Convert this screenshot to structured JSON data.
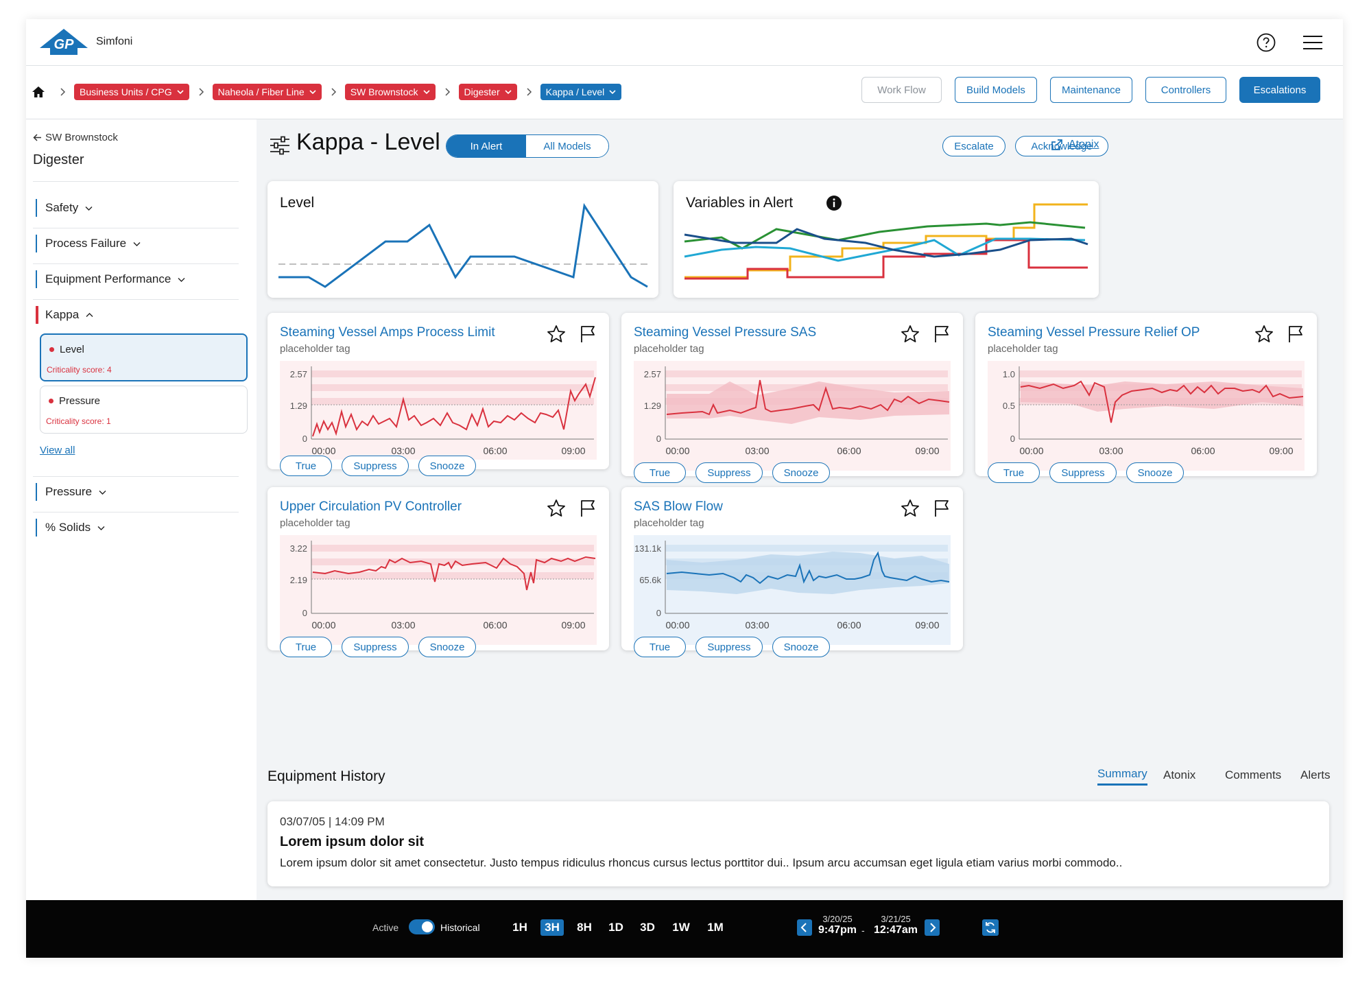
{
  "app": {
    "name": "Simfoni",
    "logo_text": "GP"
  },
  "breadcrumbs": [
    {
      "label": "Business Units / CPG"
    },
    {
      "label": "Naheola / Fiber Line"
    },
    {
      "label": "SW Brownstock"
    },
    {
      "label": "Digester"
    },
    {
      "label": "Kappa / Level"
    }
  ],
  "nav_buttons": [
    {
      "label": "Work Flow"
    },
    {
      "label": "Build Models"
    },
    {
      "label": "Maintenance"
    },
    {
      "label": "Controllers"
    },
    {
      "label": "Escalations"
    }
  ],
  "sidebar": {
    "back_label": "SW Brownstock",
    "title": "Digester",
    "groups": [
      {
        "label": "Safety"
      },
      {
        "label": "Process Failure"
      },
      {
        "label": "Equipment Performance"
      },
      {
        "label": "Kappa"
      },
      {
        "label": "Pressure"
      },
      {
        "label": "% Solids"
      }
    ],
    "alerts": [
      {
        "name": "Level",
        "score": "Criticality score: 4"
      },
      {
        "name": "Pressure",
        "score": "Criticality score: 1"
      }
    ],
    "view_all": "View all"
  },
  "header": {
    "title": "Kappa - Level",
    "toggle": [
      "In Alert",
      "All Models"
    ],
    "actions": [
      "Escalate",
      "Acknowledge"
    ],
    "atonix": "Atonix"
  },
  "summary_cards": {
    "level_title": "Level",
    "variables_title": "Variables in Alert"
  },
  "model_cards": [
    {
      "title": "Steaming Vessel Amps Process Limit",
      "tag": "placeholder tag",
      "y_ticks": [
        "2.57",
        "1.29",
        "0"
      ]
    },
    {
      "title": "Steaming Vessel Pressure SAS",
      "tag": "placeholder tag",
      "y_ticks": [
        "2.57",
        "1.29",
        "0"
      ]
    },
    {
      "title": "Steaming Vessel Pressure Relief OP",
      "tag": "placeholder tag",
      "y_ticks": [
        "1.0",
        "0.5",
        "0"
      ]
    },
    {
      "title": "Upper Circulation PV Controller",
      "tag": "placeholder tag",
      "y_ticks": [
        "3.22",
        "2.19",
        "0"
      ]
    },
    {
      "title": "SAS Blow Flow",
      "tag": "placeholder tag",
      "y_ticks": [
        "131.1k",
        "65.6k",
        "0"
      ]
    }
  ],
  "x_ticks": [
    "00:00",
    "03:00",
    "06:00",
    "09:00"
  ],
  "card_actions": [
    "True",
    "Suppress",
    "Snooze"
  ],
  "history": {
    "title": "Equipment History",
    "tabs": [
      "Summary",
      "Atonix",
      "Comments",
      "Alerts"
    ],
    "entry": {
      "timestamp": "03/07/05 | 14:09 PM",
      "headline": "Lorem ipsum dolor sit",
      "body": "Lorem ipsum dolor sit amet consectetur. Justo tempus ridiculus rhoncus cursus lectus porttitor dui.. Ipsum arcu accumsan eget ligula etiam varius morbi commodo.."
    }
  },
  "footer": {
    "mode_left": "Active",
    "mode_right": "Historical",
    "ranges": [
      "1H",
      "3H",
      "8H",
      "1D",
      "3D",
      "1W",
      "1M"
    ],
    "selected_range": "3H",
    "start_date": "3/20/25",
    "start_time": "9:47pm",
    "end_date": "3/21/25",
    "end_time": "12:47am",
    "separator": "-"
  },
  "colors": {
    "accent": "#1a73b8",
    "alert": "#d9313e",
    "green": "#2a9134",
    "orange": "#f2b31b",
    "cyan": "#20a8d4"
  }
}
